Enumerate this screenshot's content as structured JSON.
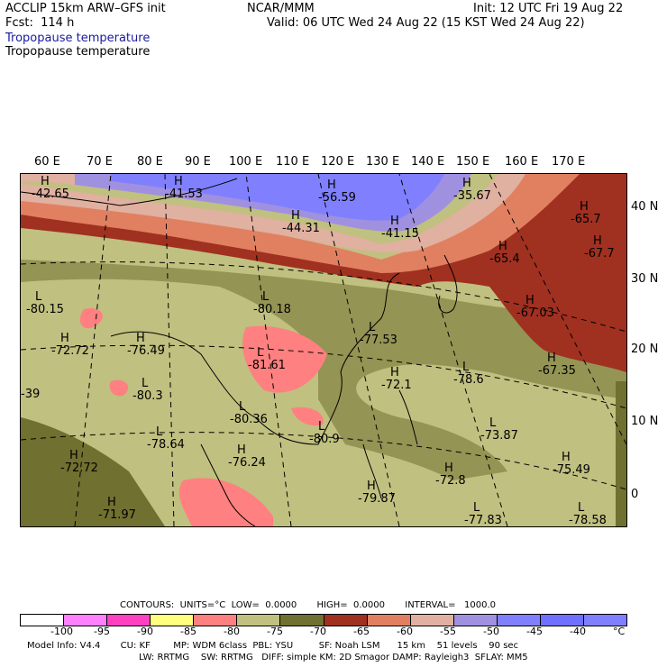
{
  "header": {
    "model": "ACCLIP 15km ARW–GFS init",
    "org": "NCAR/MMM",
    "init": "Init: 12 UTC Fri 19 Aug 22",
    "fcst": "Fcst:  114 h",
    "valid": "Valid: 06 UTC Wed 24 Aug 22 (15 KST Wed 24 Aug 22)",
    "field_1": "Tropopause temperature",
    "field_2": "Tropopause temperature"
  },
  "lon_labels": [
    "60 E",
    "70 E",
    "80 E",
    "90 E",
    "100 E",
    "110 E",
    "120 E",
    "130 E",
    "140 E",
    "150 E",
    "160 E",
    "170 E"
  ],
  "lat_labels": [
    "40 N",
    "30 N",
    "20 N",
    "10 N",
    "0"
  ],
  "map_labels": [
    {
      "t": "H",
      "v": "-42.65"
    },
    {
      "t": "H",
      "v": "-41.53"
    },
    {
      "t": "H",
      "v": "-56.59"
    },
    {
      "t": "H",
      "v": "-35.67"
    },
    {
      "t": "H",
      "v": "-44.31"
    },
    {
      "t": "H",
      "v": "-41.15"
    },
    {
      "t": "H",
      "v": "-65.7"
    },
    {
      "t": "H",
      "v": "-67.7"
    },
    {
      "t": "H",
      "v": "-65.4"
    },
    {
      "t": "L",
      "v": "-80.15"
    },
    {
      "t": "L",
      "v": "-80.18"
    },
    {
      "t": "H",
      "v": "-67.03"
    },
    {
      "t": "H",
      "v": "-72.72"
    },
    {
      "t": "H",
      "v": "-76.49"
    },
    {
      "t": "L",
      "v": "-77.53"
    },
    {
      "t": "L",
      "v": "-81.61"
    },
    {
      "t": "H",
      "v": "-67.35"
    },
    {
      "t": "L",
      "v": "-80.3"
    },
    {
      "t": "H",
      "v": "-72.1"
    },
    {
      "t": "L",
      "v": "-78.6"
    },
    {
      "t": "L",
      "v": "-80.36"
    },
    {
      "t": "L",
      "v": "-80.9"
    },
    {
      "t": "L",
      "v": "-73.87"
    },
    {
      "t": "L",
      "v": "-78.64"
    },
    {
      "t": "H",
      "v": "-76.24"
    },
    {
      "t": "H",
      "v": "-72.72"
    },
    {
      "t": "H",
      "v": "-72.8"
    },
    {
      "t": "H",
      "v": "-75.49"
    },
    {
      "t": "H",
      "v": "-79.87"
    },
    {
      "t": "H",
      "v": "-71.97"
    },
    {
      "t": "L",
      "v": "-77.83"
    },
    {
      "t": "L",
      "v": "-78.58"
    },
    {
      "t": "",
      "v": "-39"
    }
  ],
  "contours": {
    "line": "CONTOURS:  UNITS=°C  LOW=  0.0000       HIGH=  0.0000       INTERVAL=   1000.0"
  },
  "legend": {
    "ticks": [
      "-100",
      "-95",
      "-90",
      "-85",
      "-80",
      "-75",
      "-70",
      "-65",
      "-60",
      "-55",
      "-50",
      "-45",
      "-40",
      "°C"
    ],
    "colors": [
      "#ffffff",
      "#ff80ff",
      "#ff40c0",
      "#ffff80",
      "#ff8080",
      "#c0c080",
      "#707030",
      "#a03020",
      "#e08060",
      "#e0b0a0",
      "#a090e0",
      "#8080ff",
      "#7070ff",
      "#8080ff"
    ]
  },
  "footer": {
    "line1": "Model Info: V4.4       CU: KF        MP: WDM 6class  PBL: YSU         SF: Noah LSM      15 km    51 levels    90 sec",
    "line2": "                                       LW: RRTMG    SW: RRTMG   DIFF: simple KM: 2D Smagor DAMP: Rayleigh3  SFLAY: MM5"
  }
}
